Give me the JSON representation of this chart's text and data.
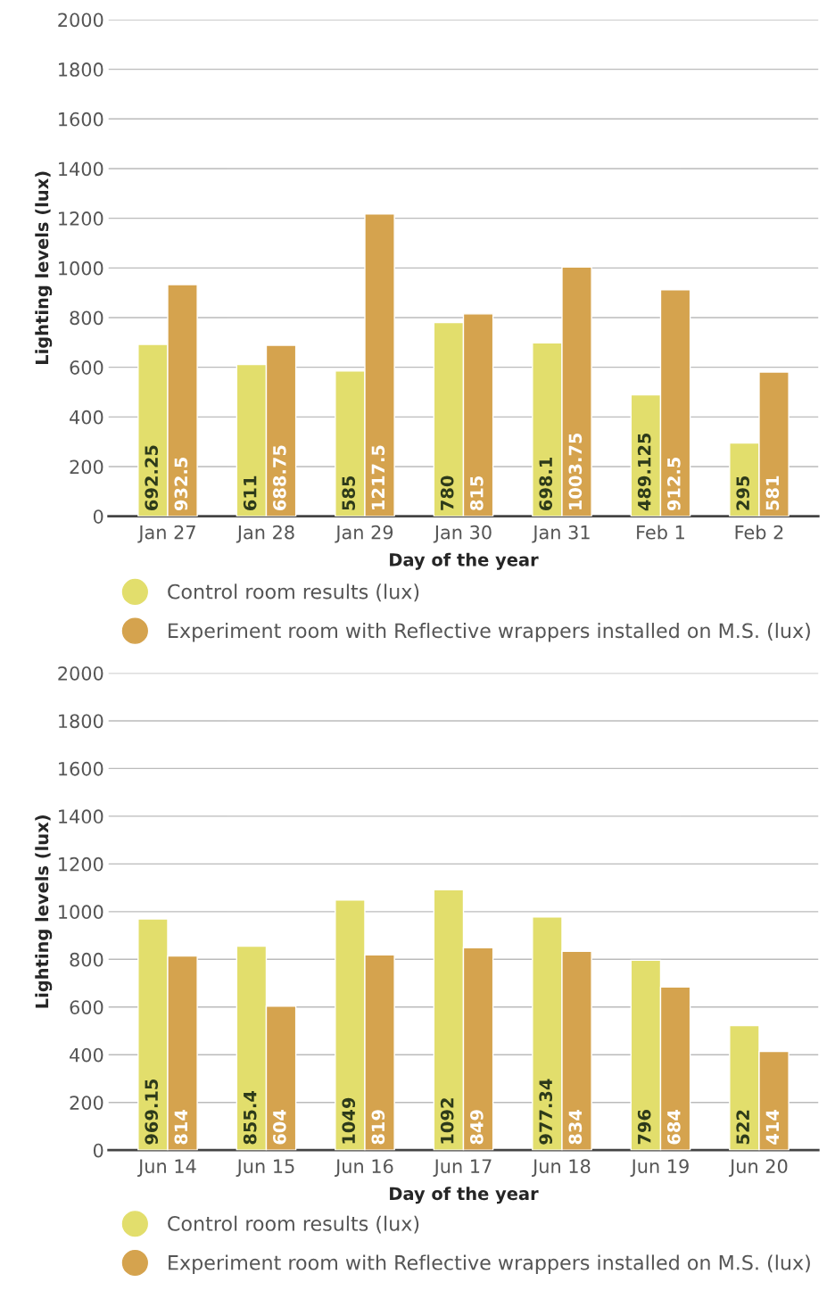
{
  "chart_data": [
    {
      "type": "bar",
      "xlabel": "Day of the year",
      "ylabel": "Lighting levels (lux)",
      "categories": [
        "Jan 27",
        "Jan 28",
        "Jan 29",
        "Jan 30",
        "Jan 31",
        "Feb 1",
        "Feb 2"
      ],
      "series": [
        {
          "name": "Control room results (lux)",
          "color": "#e2de6c",
          "values": [
            692.25,
            611,
            585,
            780,
            698.1,
            489.125,
            295
          ]
        },
        {
          "name": "Experiment room with Reflective wrappers installed on M.S. (lux)",
          "color": "#d5a34e",
          "values": [
            932.5,
            688.75,
            1217.5,
            815,
            1003.75,
            912.5,
            581
          ]
        }
      ],
      "ylim": [
        0,
        2000
      ],
      "yticks": [
        0,
        200,
        400,
        600,
        800,
        1000,
        1200,
        1400,
        1600,
        1800,
        2000
      ],
      "grid": "y",
      "legend": "bottom",
      "data_labels": true
    },
    {
      "type": "bar",
      "xlabel": "Day of the year",
      "ylabel": "Lighting levels (lux)",
      "categories": [
        "Jun 14",
        "Jun 15",
        "Jun 16",
        "Jun 17",
        "Jun 18",
        "Jun 19",
        "Jun 20"
      ],
      "series": [
        {
          "name": "Control room results (lux)",
          "color": "#e2de6c",
          "values": [
            969.15,
            855.4,
            1049,
            1092,
            977.34,
            796,
            522
          ]
        },
        {
          "name": "Experiment room with Reflective wrappers installed on M.S. (lux)",
          "color": "#d5a34e",
          "values": [
            814,
            604,
            819,
            849,
            834,
            684,
            414
          ]
        }
      ],
      "ylim": [
        0,
        2000
      ],
      "yticks": [
        0,
        200,
        400,
        600,
        800,
        1000,
        1200,
        1400,
        1600,
        1800,
        2000
      ],
      "grid": "y",
      "legend": "bottom",
      "data_labels": true
    }
  ]
}
